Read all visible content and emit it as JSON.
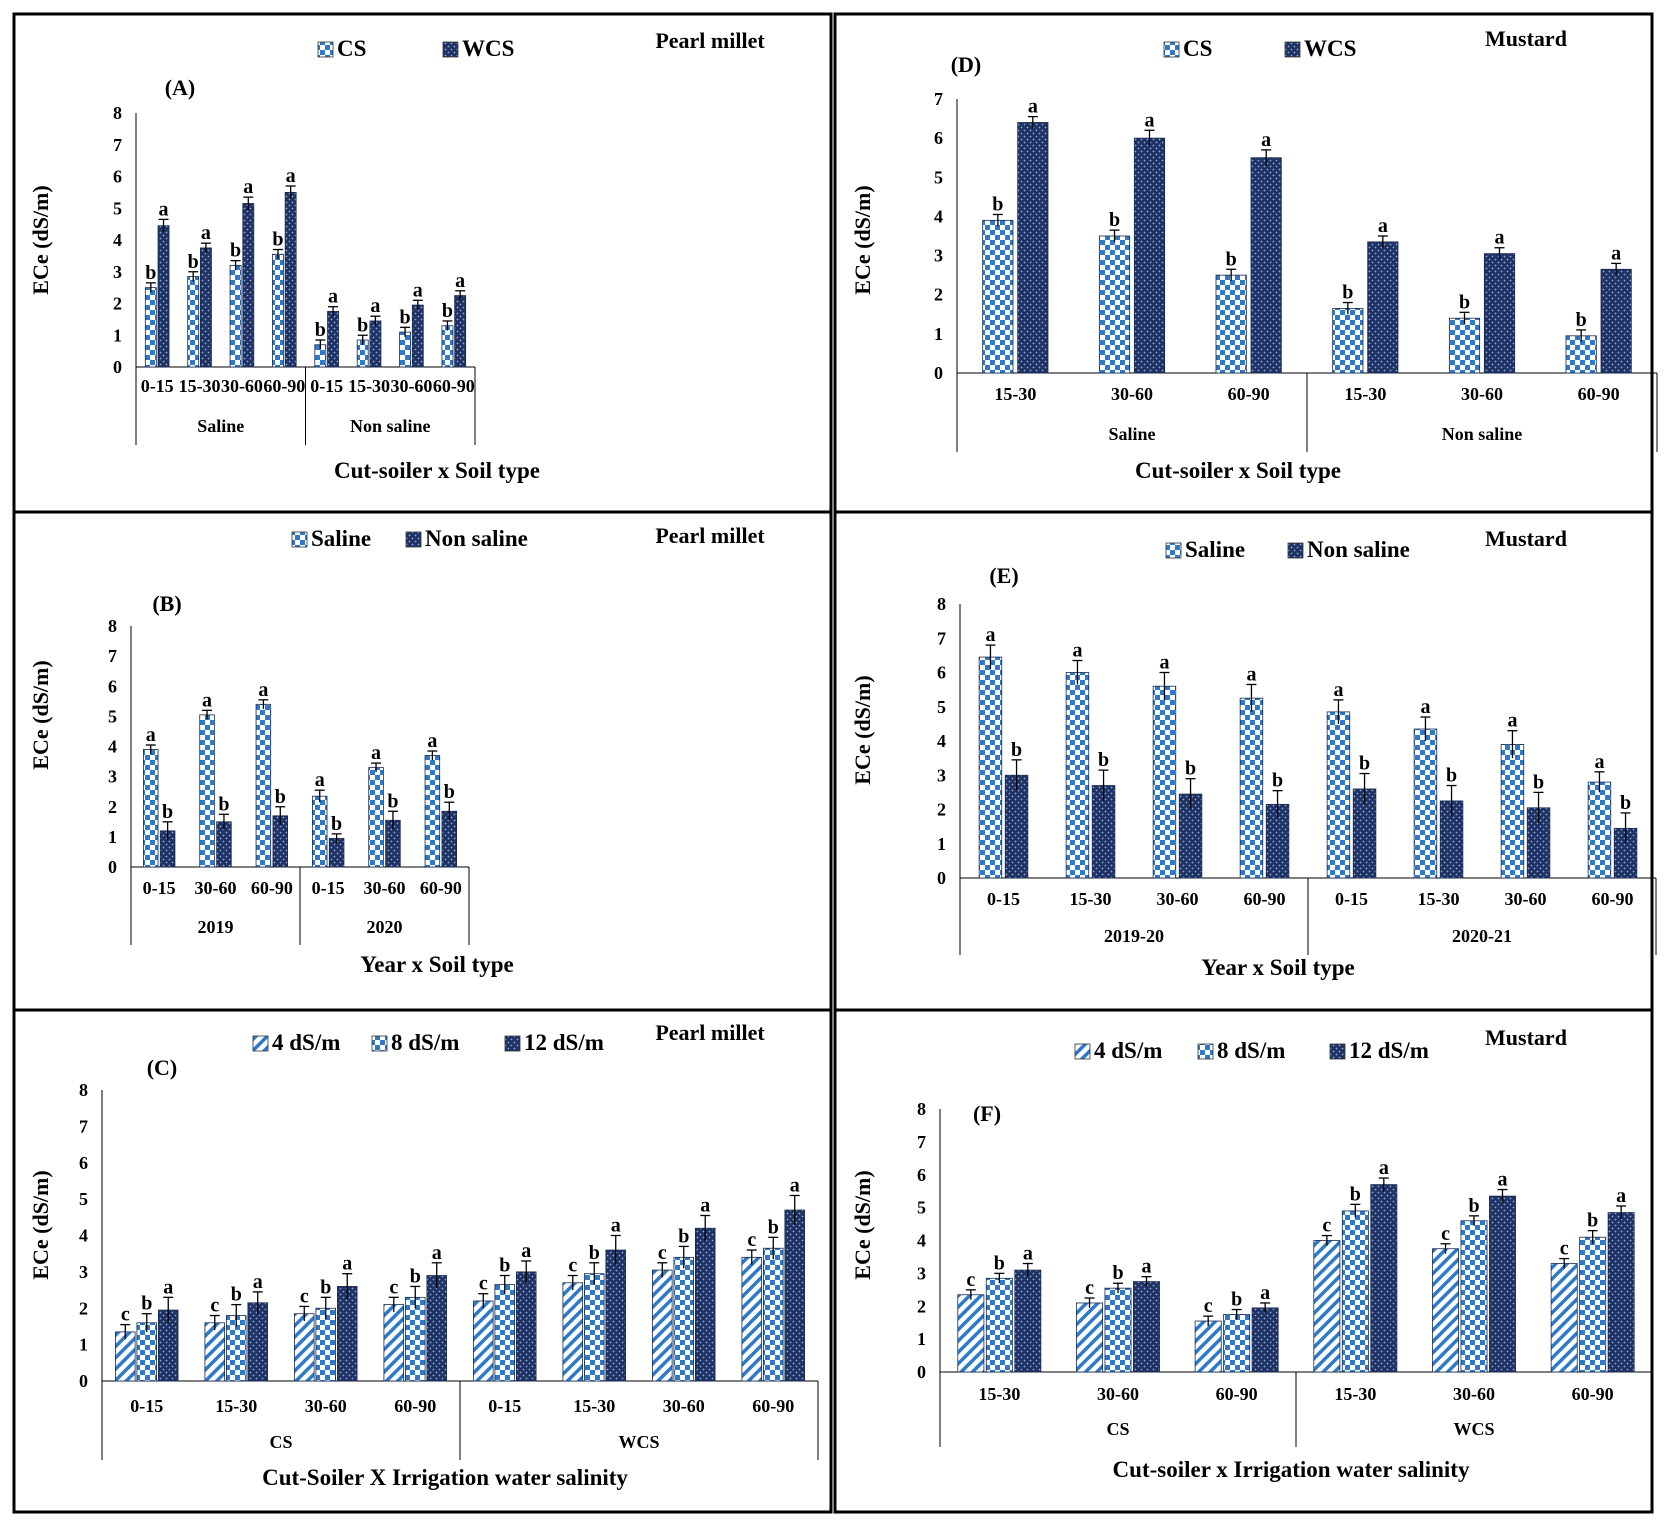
{
  "chart_data": [
    {
      "type": "bar",
      "panel": "(A)",
      "crop": "Pearl millet",
      "xlabel": "Cut-soiler x Soil type",
      "ylabel": "ECe (dS/m)",
      "ylim": [
        0,
        8
      ],
      "yticks": [
        0,
        1,
        2,
        3,
        4,
        5,
        6,
        7,
        8
      ],
      "groups": [
        "Saline",
        "Non saline"
      ],
      "categories": [
        "0-15",
        "15-30",
        "30-60",
        "60-90",
        "0-15",
        "15-30",
        "30-60",
        "60-90"
      ],
      "series": [
        {
          "name": "CS",
          "pattern": "check",
          "values": [
            2.5,
            2.85,
            3.2,
            3.55,
            0.7,
            0.85,
            1.1,
            1.3
          ],
          "err": [
            0.15,
            0.15,
            0.15,
            0.15,
            0.15,
            0.15,
            0.15,
            0.15
          ],
          "letters": [
            "b",
            "b",
            "b",
            "b",
            "b",
            "b",
            "b",
            "b"
          ]
        },
        {
          "name": "WCS",
          "pattern": "dark",
          "values": [
            4.45,
            3.75,
            5.15,
            5.5,
            1.75,
            1.45,
            1.95,
            2.25
          ],
          "err": [
            0.2,
            0.15,
            0.2,
            0.2,
            0.15,
            0.15,
            0.15,
            0.15
          ],
          "letters": [
            "a",
            "a",
            "a",
            "a",
            "a",
            "a",
            "a",
            "a"
          ]
        }
      ]
    },
    {
      "type": "bar",
      "panel": "(D)",
      "crop": "Mustard",
      "xlabel": "Cut-soiler x Soil type",
      "ylabel": "ECe (dS/m)",
      "ylim": [
        0,
        7
      ],
      "yticks": [
        0,
        1,
        2,
        3,
        4,
        5,
        6,
        7
      ],
      "groups": [
        "Saline",
        "Non saline"
      ],
      "categories": [
        "15-30",
        "30-60",
        "60-90",
        "15-30",
        "30-60",
        "60-90"
      ],
      "series": [
        {
          "name": "CS",
          "pattern": "check",
          "values": [
            3.9,
            3.5,
            2.5,
            1.65,
            1.4,
            0.95
          ],
          "err": [
            0.15,
            0.15,
            0.15,
            0.15,
            0.15,
            0.15
          ],
          "letters": [
            "b",
            "b",
            "b",
            "b",
            "b",
            "b"
          ]
        },
        {
          "name": "WCS",
          "pattern": "dark",
          "values": [
            6.4,
            6.0,
            5.5,
            3.35,
            3.05,
            2.65
          ],
          "err": [
            0.15,
            0.2,
            0.2,
            0.15,
            0.15,
            0.15
          ],
          "letters": [
            "a",
            "a",
            "a",
            "a",
            "a",
            "a"
          ]
        }
      ]
    },
    {
      "type": "bar",
      "panel": "(B)",
      "crop": "Pearl millet",
      "xlabel": "Year x Soil type",
      "ylabel": "ECe (dS/m)",
      "ylim": [
        0,
        8
      ],
      "yticks": [
        0,
        1,
        2,
        3,
        4,
        5,
        6,
        7,
        8
      ],
      "groups": [
        "2019",
        "2020"
      ],
      "categories": [
        "0-15",
        "30-60",
        "60-90",
        "0-15",
        "30-60",
        "60-90"
      ],
      "series": [
        {
          "name": "Saline",
          "pattern": "check",
          "values": [
            3.9,
            5.05,
            5.4,
            2.35,
            3.3,
            3.7
          ],
          "err": [
            0.15,
            0.15,
            0.15,
            0.2,
            0.15,
            0.15
          ],
          "letters": [
            "a",
            "a",
            "a",
            "a",
            "a",
            "a"
          ]
        },
        {
          "name": "Non saline",
          "pattern": "dark",
          "values": [
            1.2,
            1.5,
            1.7,
            0.95,
            1.55,
            1.85
          ],
          "err": [
            0.3,
            0.25,
            0.3,
            0.15,
            0.3,
            0.3
          ],
          "letters": [
            "b",
            "b",
            "b",
            "b",
            "b",
            "b"
          ]
        }
      ]
    },
    {
      "type": "bar",
      "panel": "(E)",
      "crop": "Mustard",
      "xlabel": "Year x Soil type",
      "ylabel": "ECe (dS/m)",
      "ylim": [
        0,
        8
      ],
      "yticks": [
        0,
        1,
        2,
        3,
        4,
        5,
        6,
        7,
        8
      ],
      "groups": [
        "2019-20",
        "2020-21"
      ],
      "categories": [
        "0-15",
        "15-30",
        "30-60",
        "60-90",
        "0-15",
        "15-30",
        "30-60",
        "60-90"
      ],
      "series": [
        {
          "name": "Saline",
          "pattern": "check",
          "values": [
            6.45,
            6.0,
            5.6,
            5.25,
            4.85,
            4.35,
            3.9,
            2.8
          ],
          "err": [
            0.35,
            0.35,
            0.4,
            0.4,
            0.35,
            0.35,
            0.4,
            0.3
          ],
          "letters": [
            "a",
            "a",
            "a",
            "a",
            "a",
            "a",
            "a",
            "a"
          ]
        },
        {
          "name": "Non saline",
          "pattern": "dark",
          "values": [
            3.0,
            2.7,
            2.45,
            2.15,
            2.6,
            2.25,
            2.05,
            1.45
          ],
          "err": [
            0.45,
            0.45,
            0.45,
            0.4,
            0.45,
            0.45,
            0.45,
            0.45
          ],
          "letters": [
            "b",
            "b",
            "b",
            "b",
            "b",
            "b",
            "b",
            "b"
          ]
        }
      ]
    },
    {
      "type": "bar",
      "panel": "(C)",
      "crop": "Pearl millet",
      "xlabel": "Cut-Soiler X Irrigation water salinity",
      "ylabel": "ECe (dS/m)",
      "ylim": [
        0,
        8
      ],
      "yticks": [
        0,
        1,
        2,
        3,
        4,
        5,
        6,
        7,
        8
      ],
      "groups": [
        "CS",
        "WCS"
      ],
      "categories": [
        "0-15",
        "15-30",
        "30-60",
        "60-90",
        "0-15",
        "15-30",
        "30-60",
        "60-90"
      ],
      "series": [
        {
          "name": "4 dS/m",
          "pattern": "hatch",
          "values": [
            1.35,
            1.6,
            1.85,
            2.1,
            2.2,
            2.7,
            3.05,
            3.4
          ],
          "err": [
            0.2,
            0.2,
            0.2,
            0.2,
            0.2,
            0.2,
            0.2,
            0.2
          ],
          "letters": [
            "c",
            "c",
            "c",
            "c",
            "c",
            "c",
            "c",
            "c"
          ]
        },
        {
          "name": "8 dS/m",
          "pattern": "check",
          "values": [
            1.6,
            1.8,
            2.0,
            2.3,
            2.65,
            2.95,
            3.4,
            3.65
          ],
          "err": [
            0.25,
            0.3,
            0.3,
            0.3,
            0.25,
            0.3,
            0.3,
            0.3
          ],
          "letters": [
            "b",
            "b",
            "b",
            "b",
            "b",
            "b",
            "b",
            "b"
          ]
        },
        {
          "name": "12 dS/m",
          "pattern": "dark",
          "values": [
            1.95,
            2.15,
            2.6,
            2.9,
            3.0,
            3.6,
            4.2,
            4.7
          ],
          "err": [
            0.35,
            0.3,
            0.35,
            0.35,
            0.3,
            0.4,
            0.35,
            0.4
          ],
          "letters": [
            "a",
            "a",
            "a",
            "a",
            "a",
            "a",
            "a",
            "a"
          ]
        }
      ]
    },
    {
      "type": "bar",
      "panel": "(F)",
      "crop": "Mustard",
      "xlabel": "Cut-soiler x Irrigation water salinity",
      "ylabel": "ECe (dS/m)",
      "ylim": [
        0,
        8
      ],
      "yticks": [
        0,
        1,
        2,
        3,
        4,
        5,
        6,
        7,
        8
      ],
      "groups": [
        "CS",
        "WCS"
      ],
      "categories": [
        "15-30",
        "30-60",
        "60-90",
        "15-30",
        "30-60",
        "60-90"
      ],
      "series": [
        {
          "name": "4 dS/m",
          "pattern": "hatch",
          "values": [
            2.35,
            2.1,
            1.55,
            4.0,
            3.75,
            3.3
          ],
          "err": [
            0.15,
            0.15,
            0.15,
            0.15,
            0.15,
            0.15
          ],
          "letters": [
            "c",
            "c",
            "c",
            "c",
            "c",
            "c"
          ]
        },
        {
          "name": "8 dS/m",
          "pattern": "check",
          "values": [
            2.85,
            2.55,
            1.75,
            4.9,
            4.6,
            4.1
          ],
          "err": [
            0.15,
            0.15,
            0.15,
            0.2,
            0.15,
            0.2
          ],
          "letters": [
            "b",
            "b",
            "b",
            "b",
            "b",
            "b"
          ]
        },
        {
          "name": "12 dS/m",
          "pattern": "dark",
          "values": [
            3.1,
            2.75,
            1.95,
            5.7,
            5.35,
            4.85
          ],
          "err": [
            0.2,
            0.15,
            0.15,
            0.2,
            0.2,
            0.2
          ],
          "letters": [
            "a",
            "a",
            "a",
            "a",
            "a",
            "a"
          ]
        }
      ]
    }
  ]
}
